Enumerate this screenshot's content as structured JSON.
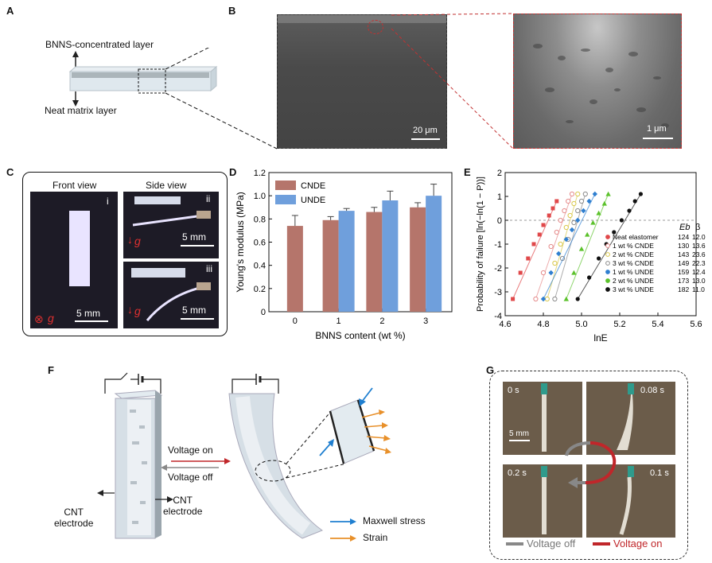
{
  "panels": {
    "A": "A",
    "B": "B",
    "C": "C",
    "D": "D",
    "E": "E",
    "F": "F",
    "G": "G"
  },
  "panelA": {
    "top_label": "BNNS-concentrated layer",
    "bottom_label": "Neat matrix layer"
  },
  "panelB": {
    "scale_left": "20 μm",
    "scale_right": "1 μm"
  },
  "panelC": {
    "front_title": "Front view",
    "side_title": "Side view",
    "roman": [
      "i",
      "ii",
      "iii"
    ],
    "gravity": "g",
    "scale": "5 mm"
  },
  "panelD": {
    "chart_data": {
      "type": "bar",
      "categories": [
        "0",
        "1",
        "2",
        "3"
      ],
      "series": [
        {
          "name": "CNDE",
          "values": [
            0.74,
            0.79,
            0.86,
            0.9
          ],
          "errors": [
            0.09,
            0.03,
            0.04,
            0.04
          ],
          "color": "#b5756b"
        },
        {
          "name": "UNDE",
          "values": [
            null,
            0.87,
            0.96,
            1.0
          ],
          "errors": [
            null,
            0.02,
            0.08,
            0.1
          ],
          "color": "#6f9fdc"
        }
      ],
      "xlabel": "BNNS content (wt %)",
      "ylabel": "Young's modulus (MPa)",
      "ylim": [
        0,
        1.2
      ],
      "yticks": [
        "0",
        "0.2",
        "0.4",
        "0.6",
        "0.8",
        "1.0",
        "1.2"
      ],
      "legend_position": "top-left"
    }
  },
  "panelE": {
    "chart_data": {
      "type": "scatter",
      "xlabel": "lnE",
      "ylabel": "Probability of failure [ln(−ln(1 − P))]",
      "xlim": [
        4.6,
        5.6
      ],
      "ylim": [
        -4,
        2
      ],
      "xticks": [
        "4.6",
        "4.8",
        "5.0",
        "5.2",
        "5.4",
        "5.6"
      ],
      "yticks": [
        "-4",
        "-3",
        "-2",
        "-1",
        "0",
        "1",
        "2"
      ],
      "legend_header_eb": "Eb",
      "legend_header_beta": "β",
      "series": [
        {
          "name": "Neat elastomer",
          "eb": "124",
          "beta": "12.0",
          "color": "#e0484a",
          "marker": "square",
          "x": [
            4.64,
            4.68,
            4.72,
            4.75,
            4.78,
            4.8,
            4.83,
            4.85,
            4.87
          ],
          "y": [
            -3.3,
            -2.2,
            -1.6,
            -1.0,
            -0.6,
            -0.2,
            0.2,
            0.5,
            0.8
          ]
        },
        {
          "name": "1 wt % CNDE",
          "eb": "130",
          "beta": "13.6",
          "color": "#e58a8a",
          "marker": "open-circle",
          "x": [
            4.76,
            4.8,
            4.84,
            4.87,
            4.89,
            4.91,
            4.93,
            4.95
          ],
          "y": [
            -3.3,
            -2.2,
            -1.1,
            -0.5,
            0,
            0.4,
            0.8,
            1.1
          ]
        },
        {
          "name": "2 wt % CNDE",
          "eb": "143",
          "beta": "23.6",
          "color": "#d9c84a",
          "marker": "open-circle",
          "x": [
            4.82,
            4.86,
            4.89,
            4.92,
            4.94,
            4.96,
            4.98
          ],
          "y": [
            -3.3,
            -1.8,
            -1.0,
            -0.3,
            0.2,
            0.7,
            1.1
          ]
        },
        {
          "name": "3 wt % CNDE",
          "eb": "149",
          "beta": "22.3",
          "color": "#8a8a8a",
          "marker": "open-circle",
          "x": [
            4.86,
            4.9,
            4.93,
            4.96,
            4.98,
            5.0,
            5.02
          ],
          "y": [
            -3.3,
            -1.6,
            -0.8,
            -0.1,
            0.4,
            0.8,
            1.1
          ]
        },
        {
          "name": "1 wt % UNDE",
          "eb": "159",
          "beta": "12.4",
          "color": "#2f7fd0",
          "marker": "diamond",
          "x": [
            4.8,
            4.84,
            4.88,
            4.92,
            4.95,
            4.98,
            5.01,
            5.04,
            5.07
          ],
          "y": [
            -3.3,
            -2.2,
            -1.4,
            -0.8,
            -0.4,
            0,
            0.4,
            0.8,
            1.1
          ]
        },
        {
          "name": "2 wt % UNDE",
          "eb": "173",
          "beta": "13.0",
          "color": "#5cc22c",
          "marker": "triangle",
          "x": [
            4.92,
            4.96,
            5.0,
            5.03,
            5.06,
            5.09,
            5.12,
            5.14
          ],
          "y": [
            -3.3,
            -2.2,
            -1.2,
            -0.6,
            -0.1,
            0.3,
            0.7,
            1.1
          ]
        },
        {
          "name": "3 wt % UNDE",
          "eb": "182",
          "beta": "11.0",
          "color": "#111111",
          "marker": "circle",
          "x": [
            4.98,
            5.04,
            5.09,
            5.13,
            5.17,
            5.21,
            5.25,
            5.28,
            5.31
          ],
          "y": [
            -3.3,
            -2.4,
            -1.6,
            -1.0,
            -0.5,
            0,
            0.4,
            0.8,
            1.1
          ]
        }
      ]
    }
  },
  "panelF": {
    "voltage_on": "Voltage on",
    "voltage_off": "Voltage off",
    "cnt_left": "CNT\nelectrode",
    "cnt_right": "CNT\nelectrode",
    "legend_maxwell": "Maxwell stress",
    "legend_strain": "Strain",
    "maxwell_color": "#1f7fd0",
    "strain_color": "#e8902a"
  },
  "panelG": {
    "times": [
      "0 s",
      "0.08 s",
      "0.2 s",
      "0.1 s"
    ],
    "scale": "5 mm",
    "legend_off": "Voltage off",
    "legend_on": "Voltage on",
    "off_color": "#888888",
    "on_color": "#c0262a"
  }
}
